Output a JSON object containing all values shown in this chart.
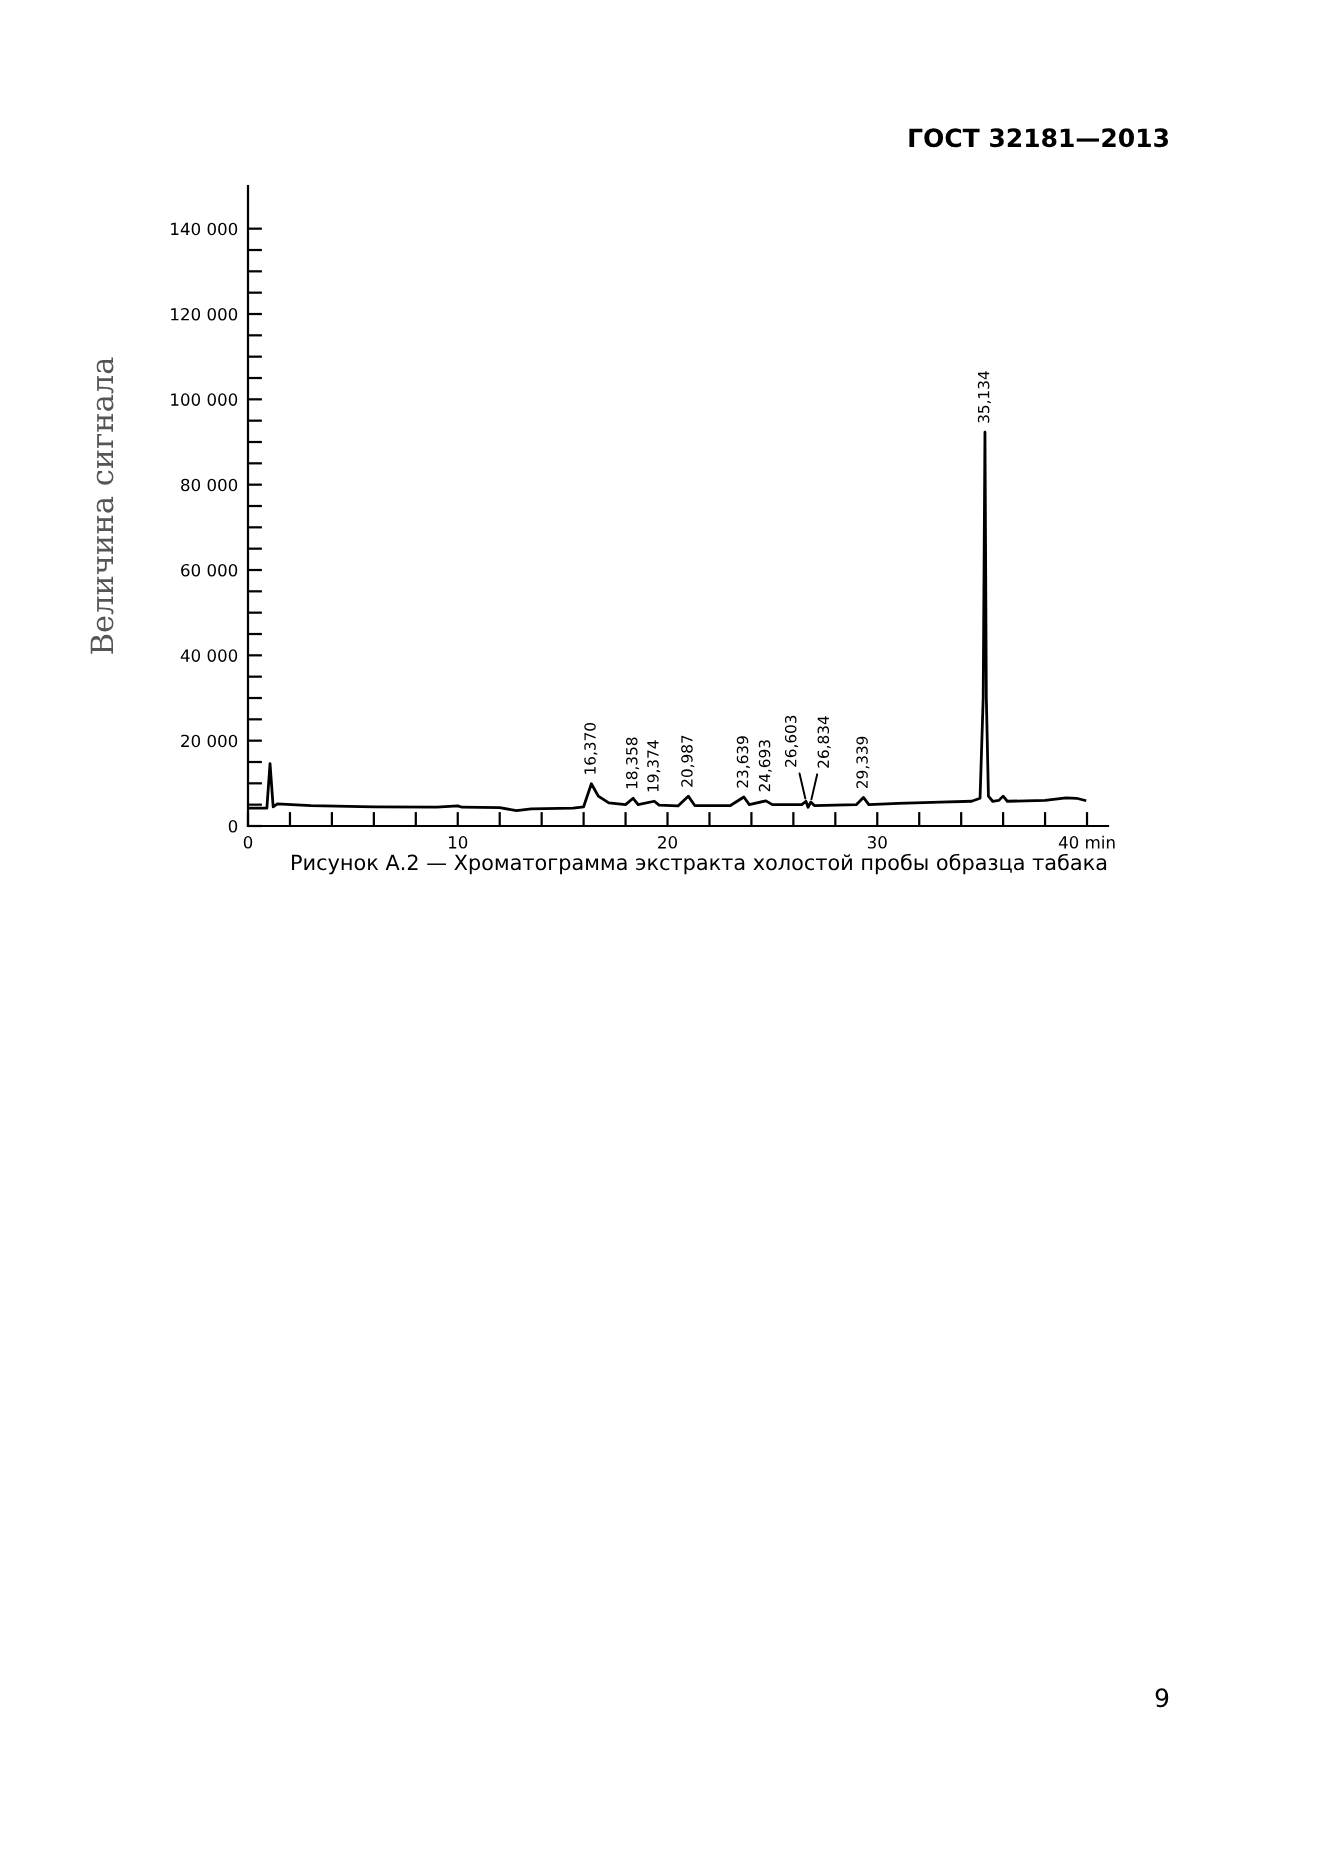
{
  "chart_data": {
    "type": "line",
    "ylabel": "Величина сигнала",
    "annotations": [
      "ГОСТ 32181—2013",
      "Рисунок А.2 — Хроматограмма экстракта холостой пробы образца табака",
      "9",
      {
        "text": "16,370",
        "x": 16.37,
        "y": 9900
      },
      {
        "text": "18,358",
        "x": 18.36,
        "y": 6500
      },
      {
        "text": "19,374",
        "x": 19.37,
        "y": 5800
      },
      {
        "text": "20,987",
        "x": 20.99,
        "y": 7000
      },
      {
        "text": "23,639",
        "x": 23.64,
        "y": 6800
      },
      {
        "text": "24,693",
        "x": 24.69,
        "y": 5900
      },
      {
        "text": "26,603",
        "x": 26.6,
        "y": 5800
      },
      {
        "text": "26,834",
        "x": 26.83,
        "y": 5600
      },
      {
        "text": "29,339",
        "x": 29.34,
        "y": 6700
      },
      {
        "text": "35,134",
        "x": 35.134,
        "y": 92300
      }
    ],
    "series": [
      {
        "color": "#000000",
        "x": [
          0,
          0.9,
          1.05,
          1.2,
          1.4,
          3,
          6,
          9,
          10,
          10.2,
          12,
          12.8,
          13.5,
          15.5,
          16.0,
          16.37,
          16.7,
          17.2,
          18.0,
          18.36,
          18.6,
          19.37,
          19.6,
          20.5,
          20.99,
          21.3,
          23.0,
          23.64,
          23.9,
          24.69,
          25.0,
          26.4,
          26.6,
          26.7,
          26.83,
          27.0,
          29.0,
          29.34,
          29.6,
          31,
          33,
          34.5,
          34.9,
          35.05,
          35.134,
          35.2,
          35.3,
          35.5,
          35.8,
          36.0,
          36.2,
          38,
          39,
          39.5,
          39.9
        ],
        "values": [
          4200,
          4200,
          14600,
          4500,
          5200,
          4800,
          4500,
          4400,
          4700,
          4400,
          4300,
          3600,
          4000,
          4200,
          4500,
          9900,
          7000,
          5400,
          5000,
          6500,
          5000,
          5800,
          4900,
          4700,
          7000,
          4800,
          4800,
          6800,
          5000,
          5900,
          5000,
          5000,
          5800,
          4400,
          5600,
          4800,
          5000,
          6700,
          5000,
          5300,
          5600,
          5800,
          6500,
          30000,
          92300,
          30000,
          7000,
          5800,
          6000,
          7000,
          5800,
          6000,
          6600,
          6500,
          6000
        ]
      }
    ],
    "xlim": [
      0,
      41
    ],
    "ylim": [
      0,
      150000
    ],
    "xticks": [
      0,
      {
        "value": 2,
        "label": null
      },
      {
        "value": 4,
        "label": null
      },
      {
        "value": 6,
        "label": null
      },
      {
        "value": 8,
        "label": null
      },
      10,
      {
        "value": 12,
        "label": null
      },
      {
        "value": 14,
        "label": null
      },
      {
        "value": 16,
        "label": null
      },
      {
        "value": 18,
        "label": null
      },
      20,
      {
        "value": 22,
        "label": null
      },
      {
        "value": 24,
        "label": null
      },
      {
        "value": 26,
        "label": null
      },
      {
        "value": 28,
        "label": null
      },
      30,
      {
        "value": 32,
        "label": null
      },
      {
        "value": 34,
        "label": null
      },
      {
        "value": 36,
        "label": null
      },
      {
        "value": 38,
        "label": null
      },
      {
        "value": 40,
        "label": "40 min"
      }
    ],
    "yticks": [
      0,
      {
        "value": 5000,
        "label": null
      },
      {
        "value": 10000,
        "label": null
      },
      {
        "value": 15000,
        "label": null
      },
      {
        "value": 20000,
        "label": "20 000"
      },
      {
        "value": 25000,
        "label": null
      },
      {
        "value": 30000,
        "label": null
      },
      {
        "value": 35000,
        "label": null
      },
      {
        "value": 40000,
        "label": "40 000"
      },
      {
        "value": 45000,
        "label": null
      },
      {
        "value": 50000,
        "label": null
      },
      {
        "value": 55000,
        "label": null
      },
      {
        "value": 60000,
        "label": "60 000"
      },
      {
        "value": 65000,
        "label": null
      },
      {
        "value": 70000,
        "label": null
      },
      {
        "value": 75000,
        "label": null
      },
      {
        "value": 80000,
        "label": "80 000"
      },
      {
        "value": 85000,
        "label": null
      },
      {
        "value": 90000,
        "label": null
      },
      {
        "value": 95000,
        "label": null
      },
      {
        "value": 100000,
        "label": "100 000"
      },
      {
        "value": 105000,
        "label": null
      },
      {
        "value": 110000,
        "label": null
      },
      {
        "value": 115000,
        "label": null
      },
      {
        "value": 120000,
        "label": "120 000"
      },
      {
        "value": 125000,
        "label": null
      },
      {
        "value": 130000,
        "label": null
      },
      {
        "value": 135000,
        "label": null
      },
      {
        "value": 140000,
        "label": "140 000"
      }
    ],
    "grid": false,
    "legend": false
  }
}
